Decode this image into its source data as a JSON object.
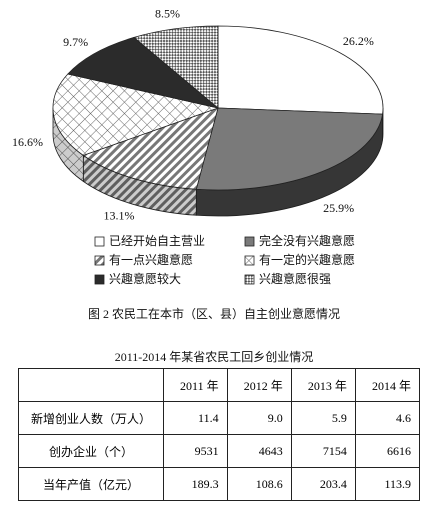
{
  "chart_data": {
    "type": "pie",
    "categories": [
      "已经开始自主营业",
      "完全没有兴趣意愿",
      "有一点兴趣意愿",
      "有一定的兴趣意愿",
      "兴趣意愿较大",
      "兴趣意愿很强"
    ],
    "values": [
      26.2,
      25.9,
      13.1,
      16.6,
      9.7,
      8.5
    ],
    "value_labels": [
      "26.2%",
      "25.9%",
      "13.1%",
      "16.6%",
      "9.7%",
      "8.5%"
    ],
    "patterns": [
      "white",
      "gray",
      "stripes",
      "crosshatch",
      "dark",
      "checker"
    ],
    "caption": "图 2  农民工在本市（区、县）自主创业意愿情况"
  },
  "table": {
    "title": "2011-2014 年某省农民工回乡创业情况",
    "header": [
      "",
      "2011 年",
      "2012 年",
      "2013 年",
      "2014 年"
    ],
    "rows": [
      [
        "新增创业人数（万人）",
        "11.4",
        "9.0",
        "5.9",
        "4.6"
      ],
      [
        "创办企业（个）",
        "9531",
        "4643",
        "7154",
        "6616"
      ],
      [
        "当年产值（亿元）",
        "189.3",
        "108.6",
        "203.4",
        "113.9"
      ]
    ]
  }
}
